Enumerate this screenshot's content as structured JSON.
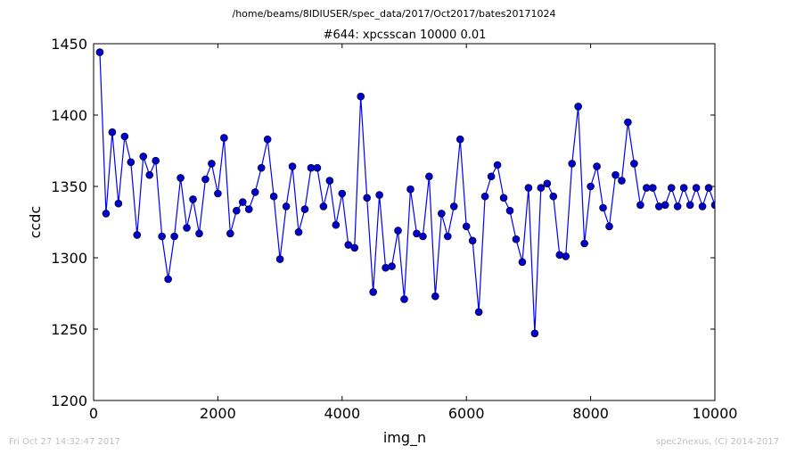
{
  "header": {
    "path": "/home/beams/8IDIUSER/spec_data/2017/Oct2017/bates20171024"
  },
  "footer": {
    "timestamp": "Fri Oct 27 14:32:47 2017",
    "credit": "spec2nexus, (C) 2014-2017"
  },
  "chart_data": {
    "type": "line",
    "title": "#644: xpcsscan 10000 0.01",
    "xlabel": "img_n",
    "ylabel": "ccdc",
    "xlim": [
      0,
      10000
    ],
    "ylim": [
      1200,
      1450
    ],
    "xticks": [
      0,
      2000,
      4000,
      6000,
      8000,
      10000
    ],
    "yticks": [
      1200,
      1250,
      1300,
      1350,
      1400,
      1450
    ],
    "grid": false,
    "marker": "circle",
    "color": "#0000ff",
    "marker_color": "#0000cc",
    "series": [
      {
        "x": [
          100,
          200,
          300,
          400,
          500,
          600,
          700,
          800,
          900,
          1000,
          1100,
          1200,
          1300,
          1400,
          1500,
          1600,
          1700,
          1800,
          1900,
          2000,
          2100,
          2200,
          2300,
          2400,
          2500,
          2600,
          2700,
          2800,
          2900,
          3000,
          3100,
          3200,
          3300,
          3400,
          3500,
          3600,
          3700,
          3800,
          3900,
          4000,
          4100,
          4200,
          4300,
          4400,
          4500,
          4600,
          4700,
          4800,
          4900,
          5000,
          5100,
          5200,
          5300,
          5400,
          5500,
          5600,
          5700,
          5800,
          5900,
          6000,
          6100,
          6200,
          6300,
          6400,
          6500,
          6600,
          6700,
          6800,
          6900,
          7000,
          7100,
          7200,
          7300,
          7400,
          7500,
          7600,
          7700,
          7800,
          7900,
          8000,
          8100,
          8200,
          8300,
          8400,
          8500,
          8600,
          8700,
          8800,
          8900,
          9000,
          9100,
          9200,
          9300,
          9400,
          9500,
          9600,
          9700,
          9800,
          9900,
          10000
        ],
        "y": [
          1444,
          1331,
          1388,
          1338,
          1385,
          1367,
          1316,
          1371,
          1358,
          1368,
          1315,
          1285,
          1315,
          1356,
          1321,
          1341,
          1317,
          1355,
          1366,
          1345,
          1384,
          1317,
          1333,
          1339,
          1334,
          1346,
          1363,
          1383,
          1343,
          1299,
          1336,
          1364,
          1318,
          1334,
          1363,
          1363,
          1336,
          1354,
          1323,
          1345,
          1309,
          1307,
          1413,
          1342,
          1276,
          1344,
          1293,
          1294,
          1319,
          1271,
          1348,
          1317,
          1315,
          1357,
          1273,
          1331,
          1315,
          1336,
          1383,
          1322,
          1312,
          1262,
          1343,
          1357,
          1365,
          1342,
          1333,
          1313,
          1297,
          1349,
          1247,
          1349,
          1352,
          1343,
          1302,
          1301,
          1366,
          1406,
          1310,
          1350,
          1364,
          1335,
          1322,
          1358,
          1354,
          1395,
          1366,
          1337,
          1349,
          1349,
          1336,
          1337,
          1349,
          1336,
          1349,
          1337,
          1349,
          1336,
          1349,
          1337
        ]
      }
    ]
  }
}
